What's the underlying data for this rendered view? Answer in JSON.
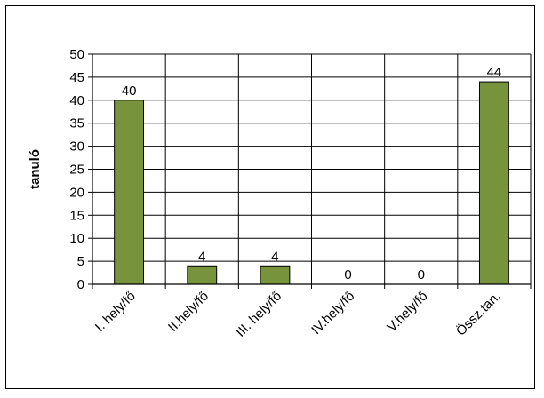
{
  "chart_data": {
    "type": "bar",
    "title": "",
    "xlabel": "",
    "ylabel": "tanuló",
    "ylim": [
      0,
      50
    ],
    "ytick_step": 5,
    "grid": true,
    "bar_color": "#77933c",
    "bar_edge_color": "#000000",
    "categories": [
      "I. hely/fő",
      "II.hely/fő",
      "III. hely/fő",
      "IV.hely/fő",
      "V.hely/fő",
      "Össz.tan."
    ],
    "values": [
      40,
      4,
      4,
      0,
      0,
      44
    ],
    "data_labels": [
      "40",
      "4",
      "4",
      "0",
      "0",
      "44"
    ]
  }
}
